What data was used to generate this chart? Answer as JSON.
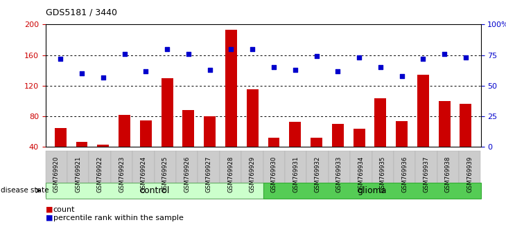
{
  "title": "GDS5181 / 3440",
  "samples": [
    "GSM769920",
    "GSM769921",
    "GSM769922",
    "GSM769923",
    "GSM769924",
    "GSM769925",
    "GSM769926",
    "GSM769927",
    "GSM769928",
    "GSM769929",
    "GSM769930",
    "GSM769931",
    "GSM769932",
    "GSM769933",
    "GSM769934",
    "GSM769935",
    "GSM769936",
    "GSM769937",
    "GSM769938",
    "GSM769939"
  ],
  "counts": [
    65,
    47,
    43,
    82,
    75,
    130,
    88,
    80,
    193,
    115,
    52,
    73,
    52,
    70,
    64,
    104,
    74,
    134,
    100,
    96
  ],
  "percentiles": [
    72,
    60,
    57,
    76,
    62,
    80,
    76,
    63,
    80,
    80,
    65,
    63,
    74,
    62,
    73,
    65,
    58,
    72,
    76,
    73
  ],
  "control_count": 10,
  "ylim_left": [
    40,
    200
  ],
  "ylim_right": [
    0,
    100
  ],
  "bar_color": "#cc0000",
  "dot_color": "#0000cc",
  "bg_color": "#ffffff",
  "tick_color_left": "#cc0000",
  "tick_color_right": "#0000cc",
  "control_bg": "#ccffcc",
  "glioma_bg": "#55cc55",
  "sample_bg": "#cccccc",
  "legend_count_label": "count",
  "legend_pct_label": "percentile rank within the sample",
  "disease_state_label": "disease state",
  "control_label": "control",
  "glioma_label": "glioma",
  "left_yticks": [
    40,
    80,
    120,
    160,
    200
  ],
  "right_yticks": [
    0,
    25,
    50,
    75,
    100
  ],
  "right_ytick_labels": [
    "0",
    "25",
    "50",
    "75",
    "100%"
  ]
}
